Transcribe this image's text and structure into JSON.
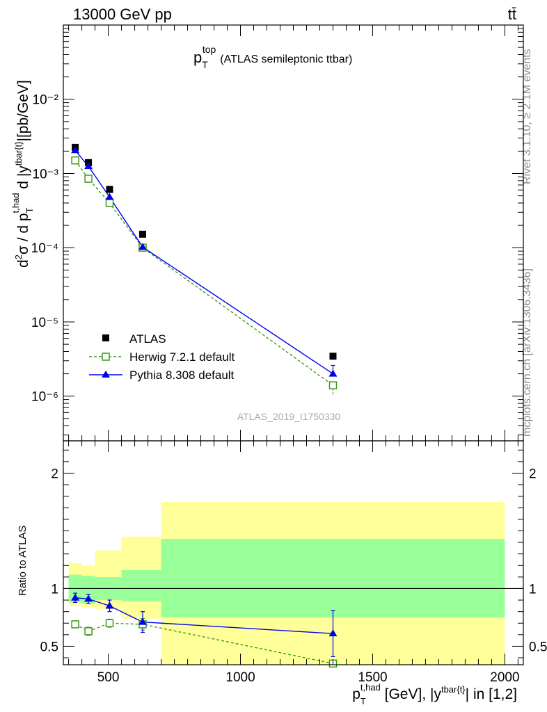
{
  "header": {
    "left": "13000 GeV pp",
    "right": "tt̄"
  },
  "side_text": {
    "rivet": "Rivet 3.1.10, ≥ 2.1M events",
    "mcplots": "mcplots.cern.ch [arXiv:1306.3436]"
  },
  "colors": {
    "atlas": "#000000",
    "herwig": "#3c9a1a",
    "pythia": "#0000ee",
    "band_inner": "#99ff99",
    "band_outer": "#ffff99"
  },
  "chart_data": [
    {
      "type": "scatter",
      "title": "p_T^top (ATLAS semileptonic ttbar)",
      "ylabel": "d²σ / d p_T^t,had d |y^tbar{t}| [pb/GeV]",
      "watermark": "ATLAS_2019_I1750330",
      "log_y": true,
      "ylim": [
        2.5e-07,
        0.1
      ],
      "y_ticks": [
        "10⁻⁶",
        "10⁻⁵",
        "10⁻⁴",
        "10⁻³",
        "10⁻²"
      ],
      "legend_position": "bottom-left",
      "x": [
        375,
        425,
        505,
        630,
        1350
      ],
      "series": [
        {
          "name": "ATLAS",
          "marker": "filled-square",
          "values": [
            0.00225,
            0.0014,
            0.00061,
            0.000152,
            3.45e-06
          ]
        },
        {
          "name": "Herwig 7.2.1 default",
          "marker": "open-square",
          "line": "dashed",
          "values": [
            0.0015,
            0.00085,
            0.0004,
            0.0001,
            1.4e-06
          ],
          "err_low": [
            null,
            null,
            null,
            null,
            1e-06
          ]
        },
        {
          "name": "Pythia 8.308 default",
          "marker": "filled-triangle",
          "line": "solid",
          "values": [
            0.00205,
            0.00125,
            0.00048,
            0.000102,
            2e-06
          ],
          "err_high": [
            null,
            null,
            null,
            null,
            2.6e-06
          ]
        }
      ]
    },
    {
      "type": "scatter",
      "ylabel": "Ratio to ATLAS",
      "xlabel": "p_T^t,had [GeV], |y^tbar{t}| in [1,2]",
      "xlim": [
        330,
        2070
      ],
      "ylim": [
        0.34,
        2.28
      ],
      "x_ticks": [
        500,
        1000,
        1500,
        2000
      ],
      "y_ticks": [
        0.5,
        1,
        2
      ],
      "bins": [
        [
          350,
          400
        ],
        [
          400,
          450
        ],
        [
          450,
          550
        ],
        [
          550,
          700
        ],
        [
          700,
          2000
        ]
      ],
      "band_inner": [
        [
          0.88,
          1.12
        ],
        [
          0.87,
          1.11
        ],
        [
          0.9,
          1.1
        ],
        [
          0.89,
          1.16
        ],
        [
          0.75,
          1.43
        ]
      ],
      "band_outer": [
        [
          0.85,
          1.22
        ],
        [
          0.84,
          1.2
        ],
        [
          0.82,
          1.33
        ],
        [
          0.74,
          1.45
        ],
        [
          0.34,
          1.75
        ]
      ],
      "x": [
        375,
        425,
        505,
        630,
        1350
      ],
      "series": [
        {
          "name": "Herwig 7.2.1 default",
          "values": [
            0.69,
            0.63,
            0.7,
            0.69,
            0.35
          ],
          "err": [
            0.03,
            0.035,
            0.035,
            0.05,
            0.0
          ]
        },
        {
          "name": "Pythia 8.308 default",
          "values": [
            0.92,
            0.91,
            0.85,
            0.71,
            0.61
          ],
          "err": [
            0.04,
            0.04,
            0.05,
            0.09,
            0.2
          ]
        }
      ]
    }
  ]
}
